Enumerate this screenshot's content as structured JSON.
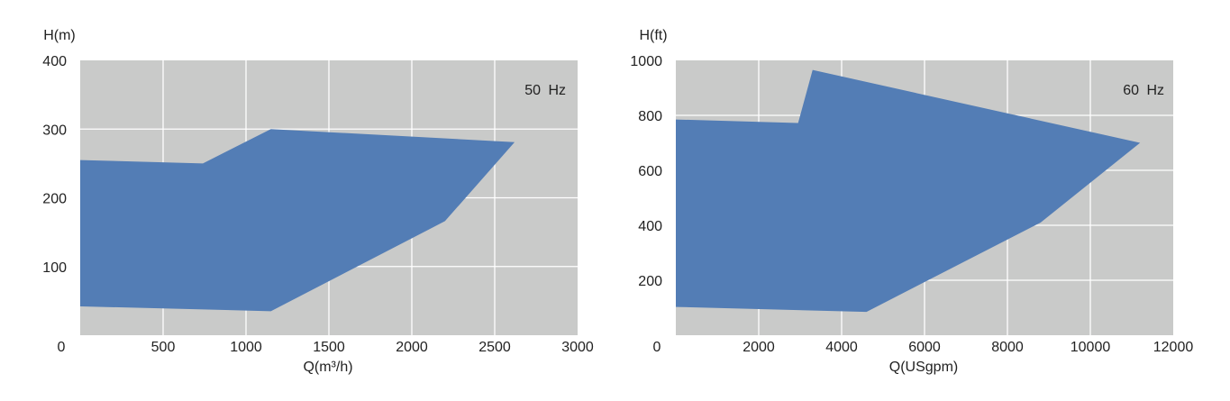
{
  "chart_data": [
    {
      "type": "area",
      "title": "50 Hz",
      "xlabel": "Q(m³/h)",
      "ylabel": "H(m)",
      "xlim": [
        0,
        3000
      ],
      "ylim": [
        0,
        400
      ],
      "xticks": [
        0,
        500,
        1000,
        1500,
        2000,
        2500,
        3000
      ],
      "yticks": [
        100,
        200,
        300,
        400
      ],
      "y_zero_label": "0",
      "grid": true,
      "fill_color": "#537db5",
      "background_color": "#c9cac9",
      "polygon": [
        [
          0,
          255
        ],
        [
          740,
          250
        ],
        [
          1150,
          300
        ],
        [
          2620,
          281
        ],
        [
          2200,
          166
        ],
        [
          1150,
          35
        ],
        [
          0,
          42
        ]
      ]
    },
    {
      "type": "area",
      "title": "60 Hz",
      "xlabel": "Q(USgpm)",
      "ylabel": "H(ft)",
      "xlim": [
        0,
        12000
      ],
      "ylim": [
        0,
        1000
      ],
      "xticks": [
        0,
        2000,
        4000,
        6000,
        8000,
        10000,
        12000
      ],
      "yticks": [
        200,
        400,
        600,
        800,
        1000
      ],
      "grid": true,
      "fill_color": "#537db5",
      "background_color": "#c9cac9",
      "polygon": [
        [
          0,
          785
        ],
        [
          2950,
          772
        ],
        [
          3300,
          965
        ],
        [
          11200,
          700
        ],
        [
          8800,
          410
        ],
        [
          4600,
          85
        ],
        [
          0,
          103
        ]
      ]
    }
  ]
}
